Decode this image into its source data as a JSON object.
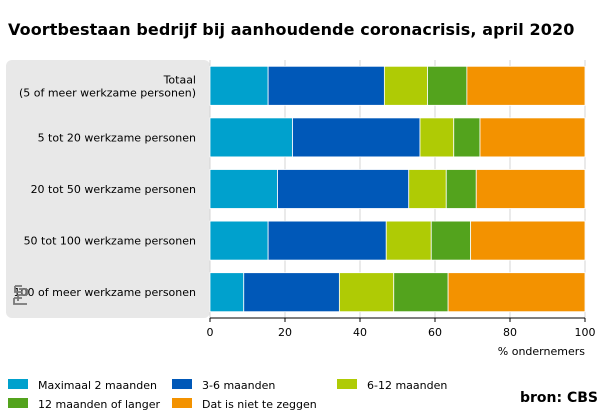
{
  "chart_data": {
    "type": "bar",
    "stacked": true,
    "orientation": "horizontal",
    "title": "Voortbestaan bedrijf bij aanhoudende coronacrisis, april 2020",
    "xlabel": "% ondernemers",
    "xlim": [
      0,
      100
    ],
    "xticks": [
      0,
      20,
      40,
      60,
      80,
      100
    ],
    "categories": [
      [
        "Totaal",
        "(5 of meer werkzame personen)"
      ],
      [
        "5 tot 20 werkzame personen"
      ],
      [
        "20 tot 50 werkzame personen"
      ],
      [
        "50 tot 100 werkzame personen"
      ],
      [
        "100 of meer werkzame personen"
      ]
    ],
    "series": [
      {
        "name": "Maximaal 2 maanden",
        "color": "#00a1cd",
        "values": [
          15.5,
          22,
          18,
          15.5,
          9
        ]
      },
      {
        "name": "3-6 maanden",
        "color": "#0058b8",
        "values": [
          31,
          34,
          35,
          31.5,
          25.5
        ]
      },
      {
        "name": "6-12 maanden",
        "color": "#afcb05",
        "values": [
          11.5,
          9,
          10,
          12,
          14.5
        ]
      },
      {
        "name": "12 maanden of langer",
        "color": "#53a31d",
        "values": [
          10.5,
          7,
          8,
          10.5,
          14.5
        ]
      },
      {
        "name": "Dat is niet te zeggen",
        "color": "#f39200",
        "values": [
          31.5,
          28,
          29,
          30.5,
          36.5
        ]
      }
    ],
    "legend_position": "bottom"
  },
  "source": "bron: CBS"
}
